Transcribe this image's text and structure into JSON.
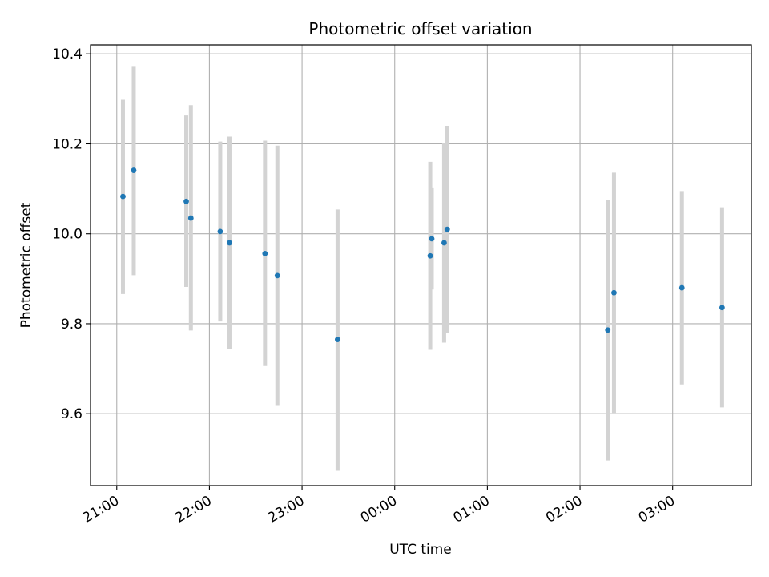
{
  "chart_data": {
    "type": "scatter",
    "title": "Photometric offset variation",
    "xlabel": "UTC time",
    "ylabel": "Photometric offset",
    "x_tick_labels": [
      "21:00",
      "22:00",
      "23:00",
      "00:00",
      "01:00",
      "02:00",
      "03:00"
    ],
    "x_ticks": [
      "21:00",
      "22:00",
      "23:00",
      "00:00",
      "01:00",
      "02:00",
      "03:00"
    ],
    "y_ticks": [
      9.6,
      9.8,
      10.0,
      10.2,
      10.4
    ],
    "y_tick_labels": [
      "9.6",
      "9.8",
      "10.0",
      "10.2",
      "10.4"
    ],
    "xlim": [
      "20:43",
      "03:51"
    ],
    "ylim": [
      9.44,
      10.42
    ],
    "grid": true,
    "point_color": "#1f77b4",
    "errorbar_color": "#d3d3d3",
    "points": [
      {
        "t": "21:04",
        "y": 10.083,
        "lo": 9.866,
        "hi": 10.298
      },
      {
        "t": "21:11",
        "y": 10.141,
        "lo": 9.908,
        "hi": 10.373
      },
      {
        "t": "21:45",
        "y": 10.072,
        "lo": 9.882,
        "hi": 10.263
      },
      {
        "t": "21:48",
        "y": 10.035,
        "lo": 9.785,
        "hi": 10.286
      },
      {
        "t": "22:07",
        "y": 10.005,
        "lo": 9.805,
        "hi": 10.205
      },
      {
        "t": "22:13",
        "y": 9.98,
        "lo": 9.744,
        "hi": 10.216
      },
      {
        "t": "22:36",
        "y": 9.956,
        "lo": 9.706,
        "hi": 10.207
      },
      {
        "t": "22:44",
        "y": 9.907,
        "lo": 9.619,
        "hi": 10.196
      },
      {
        "t": "23:23",
        "y": 9.765,
        "lo": 9.473,
        "hi": 10.054
      },
      {
        "t": "00:23",
        "y": 9.951,
        "lo": 9.742,
        "hi": 10.16
      },
      {
        "t": "00:24",
        "y": 9.989,
        "lo": 9.876,
        "hi": 10.103
      },
      {
        "t": "00:32",
        "y": 9.98,
        "lo": 9.758,
        "hi": 10.201
      },
      {
        "t": "00:34",
        "y": 10.01,
        "lo": 9.78,
        "hi": 10.24
      },
      {
        "t": "02:18",
        "y": 9.786,
        "lo": 9.496,
        "hi": 10.076
      },
      {
        "t": "02:22",
        "y": 9.869,
        "lo": 9.602,
        "hi": 10.136
      },
      {
        "t": "03:06",
        "y": 9.88,
        "lo": 9.665,
        "hi": 10.095
      },
      {
        "t": "03:32",
        "y": 9.836,
        "lo": 9.614,
        "hi": 10.059
      }
    ]
  }
}
